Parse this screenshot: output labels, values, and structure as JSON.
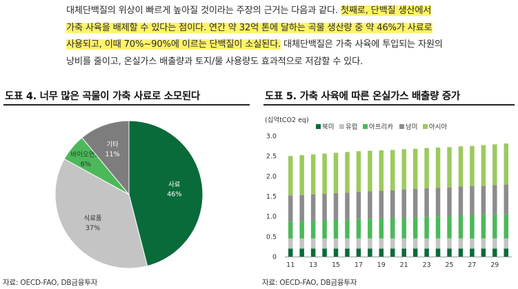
{
  "paragraph": {
    "line1_plain": "대체단백질의 위상이 빠르게 높아질 것이라는 주장의 근거는 다음과 같다. ",
    "line1_hl": "첫째로, 단백질 생산에서",
    "line2_hl": "가축 사육을 배제할 수 있다는 점이다. 연간 약 32억 톤에 달하는 곡물 생산량 중 약 46%가 사료로",
    "line3_hl": "사용되고, 이때 70%~90%에 이르는 단백질이 소실된다.",
    "line3_plain": " 대체단백질은 가축 사육에 투입되는 자원의",
    "line4_plain": "낭비를 줄이고, 온실가스 배출량과 토지/물 사용량도 효과적으로 저감할 수 있다."
  },
  "left_panel": {
    "title": "도표 4. 너무 많은 곡물이 가축 사료로 소모된다",
    "source": "자료: OECD-FAO, DB금융투자"
  },
  "right_panel": {
    "title": "도표 5. 가축 사육에 따른 온실가스 배출량 증가",
    "source": "자료: OECD-FAO, DB금융투자"
  },
  "colors": {
    "feed": "#0a6b3a",
    "food": "#c4c4c4",
    "bio": "#4cb85a",
    "other": "#7d7d7d",
    "north_america": "#0a6b3a",
    "europe": "#c4c4c4",
    "africa": "#4cb85a",
    "south_america": "#8c8c8c",
    "asia": "#9cca5e",
    "highlight": "#fff36a"
  },
  "chart_data": [
    {
      "type": "pie",
      "slices": [
        {
          "label": "사료",
          "value": 46,
          "value_label": "46%",
          "color": "#0a6b3a"
        },
        {
          "label": "식료품",
          "value": 37,
          "value_label": "37%",
          "color": "#c4c4c4"
        },
        {
          "label": "바이오연료",
          "value": 6,
          "value_label": "6%",
          "color": "#4cb85a"
        },
        {
          "label": "기타",
          "value": 11,
          "value_label": "11%",
          "color": "#7d7d7d"
        }
      ]
    },
    {
      "type": "bar",
      "stacked": true,
      "unit_label": "(십억tCO2 eq)",
      "categories": [
        "11",
        "12",
        "13",
        "14",
        "15",
        "16",
        "17",
        "18",
        "19",
        "20",
        "21",
        "22",
        "23",
        "24",
        "25",
        "26",
        "27",
        "28",
        "29",
        "30"
      ],
      "tick_labels": [
        "11",
        "13",
        "15",
        "17",
        "19",
        "21",
        "23",
        "25",
        "27",
        "29"
      ],
      "ylim": [
        0,
        3.0
      ],
      "yticks": [
        "0",
        "0.5",
        "1.0",
        "1.5",
        "2.0",
        "2.5",
        "3.0"
      ],
      "legend_position": "top",
      "series": [
        {
          "name": "북미",
          "color": "#0a6b3a",
          "values": [
            0.2,
            0.2,
            0.2,
            0.2,
            0.2,
            0.2,
            0.2,
            0.2,
            0.2,
            0.2,
            0.2,
            0.2,
            0.2,
            0.2,
            0.2,
            0.2,
            0.2,
            0.2,
            0.2,
            0.2
          ]
        },
        {
          "name": "유럽",
          "color": "#c4c4c4",
          "values": [
            0.25,
            0.25,
            0.25,
            0.25,
            0.25,
            0.25,
            0.25,
            0.25,
            0.25,
            0.25,
            0.25,
            0.25,
            0.25,
            0.25,
            0.25,
            0.25,
            0.25,
            0.25,
            0.25,
            0.25
          ]
        },
        {
          "name": "아프리카",
          "color": "#4cb85a",
          "values": [
            0.42,
            0.43,
            0.44,
            0.45,
            0.46,
            0.47,
            0.48,
            0.49,
            0.5,
            0.51,
            0.52,
            0.53,
            0.54,
            0.55,
            0.56,
            0.57,
            0.58,
            0.59,
            0.6,
            0.61
          ]
        },
        {
          "name": "남미",
          "color": "#8c8c8c",
          "values": [
            0.65,
            0.65,
            0.66,
            0.66,
            0.67,
            0.67,
            0.68,
            0.68,
            0.69,
            0.69,
            0.7,
            0.7,
            0.71,
            0.71,
            0.71,
            0.72,
            0.72,
            0.72,
            0.73,
            0.73
          ]
        },
        {
          "name": "아시아",
          "color": "#9cca5e",
          "values": [
            0.98,
            0.99,
            0.99,
            1.0,
            1.0,
            1.01,
            1.01,
            1.01,
            1.0,
            1.0,
            1.0,
            1.0,
            1.0,
            1.0,
            1.0,
            1.0,
            1.0,
            1.01,
            1.01,
            1.02
          ]
        }
      ]
    }
  ]
}
